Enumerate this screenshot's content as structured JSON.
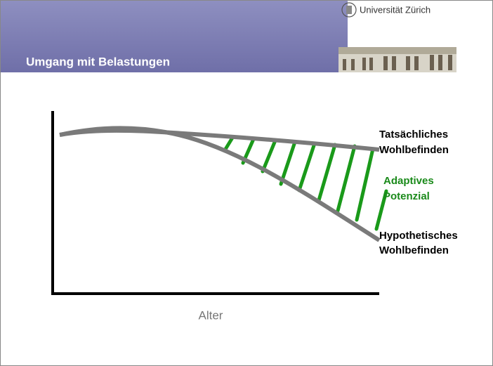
{
  "header": {
    "title": "Umgang mit Belastungen",
    "logo_text": "Universität Zürich"
  },
  "diagram": {
    "x_axis_label": "Alter",
    "labels": [
      {
        "lines": [
          "Tatsächliches",
          "Wohlbefinden"
        ]
      },
      {
        "lines": [
          "Adaptives",
          "Potenzial"
        ]
      },
      {
        "lines": [
          "Hypothetisches",
          "Wohlbefinden"
        ]
      }
    ]
  }
}
